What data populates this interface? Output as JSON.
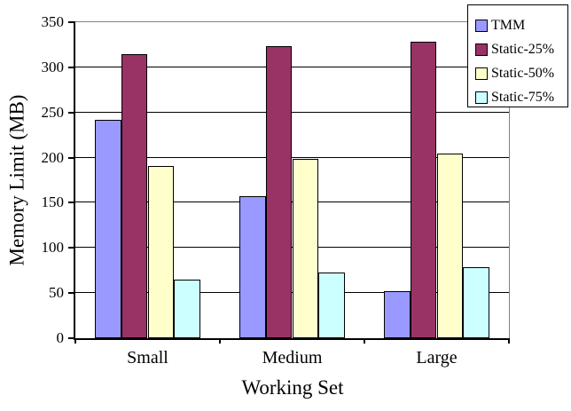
{
  "chart_data": {
    "type": "bar",
    "title": "",
    "xlabel": "Working Set",
    "ylabel": "Memory Limit (MB)",
    "categories": [
      "Small",
      "Medium",
      "Large"
    ],
    "series": [
      {
        "name": "TMM",
        "color": "#9999FF",
        "values": [
          242,
          157,
          52
        ]
      },
      {
        "name": "Static-25%",
        "color": "#993366",
        "values": [
          315,
          323,
          328
        ]
      },
      {
        "name": "Static-50%",
        "color": "#FFFFCC",
        "values": [
          191,
          199,
          205
        ]
      },
      {
        "name": "Static-75%",
        "color": "#CCFFFF",
        "values": [
          65,
          73,
          79
        ]
      }
    ],
    "ylim": [
      0,
      350
    ],
    "yticks": [
      0,
      50,
      100,
      150,
      200,
      250,
      300,
      350
    ],
    "grid": true,
    "gap_width_percent": 150,
    "legend_position": "top-right",
    "colors": {
      "bar_border": "#000000",
      "gridline": "#000000",
      "plot_border": "#848284",
      "axis": "#000000",
      "background": "#FFFFFF",
      "legend_border": "#000000",
      "legend_bg": "#FFFFFF",
      "text": "#000000"
    }
  }
}
